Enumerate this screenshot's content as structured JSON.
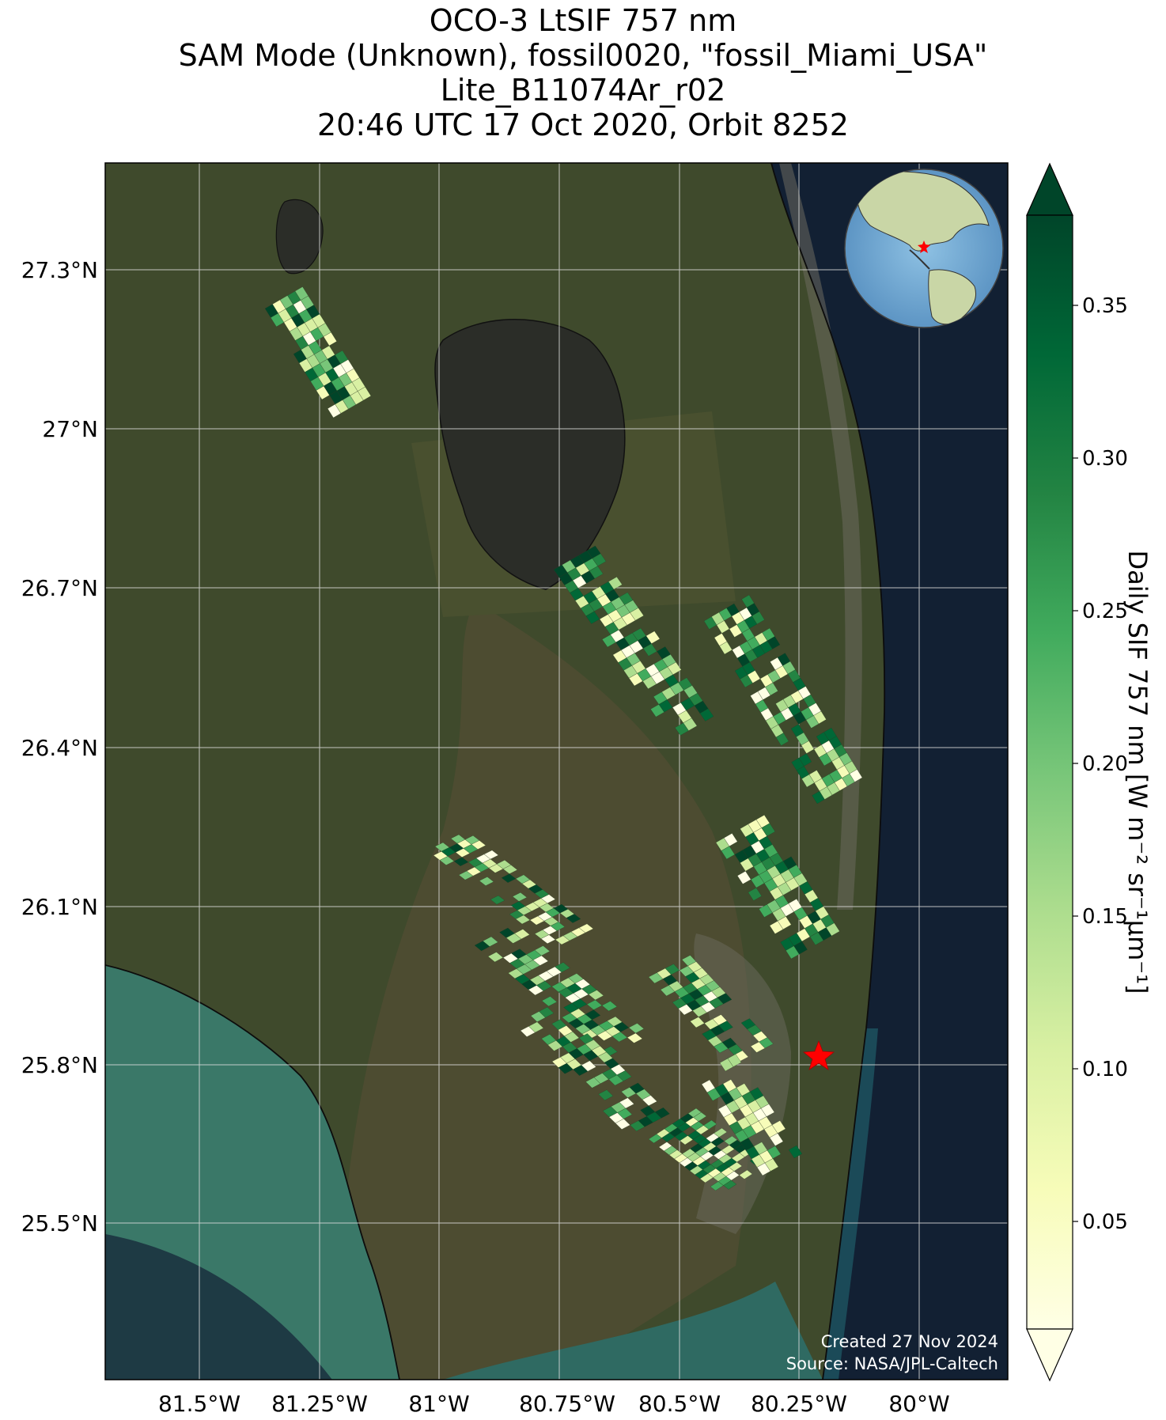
{
  "title": {
    "line1": "OCO-3 LtSIF 757 nm",
    "line2": "SAM Mode (Unknown), fossil0020, \"fossil_Miami_USA\"",
    "line3": "Lite_B11074Ar_r02",
    "line4": "20:46 UTC 17 Oct 2020, Orbit 8252"
  },
  "map": {
    "lat_labels": [
      "27.3°N",
      "27°N",
      "26.7°N",
      "26.4°N",
      "26.1°N",
      "25.8°N",
      "25.5°N"
    ],
    "lon_labels": [
      "81.5°W",
      "81.25°W",
      "81°W",
      "80.75°W",
      "80.5°W",
      "80.25°W",
      "80°W"
    ],
    "target_marker": "red-star",
    "credit_line1": "Created 27 Nov 2024",
    "credit_line2": "Source: NASA/JPL-Caltech",
    "colors": {
      "land": "#3f4a2c",
      "everglades": "#4a4a30",
      "ocean": "#122033",
      "gulf_shallow": "#3a7868",
      "lake": "#2b2d28",
      "grid": "#dcdcdc"
    }
  },
  "colorbar": {
    "label": "Daily SIF 757 nm [W m⁻² sr⁻¹µm⁻¹]",
    "ticks": [
      "0.05",
      "0.10",
      "0.15",
      "0.20",
      "0.25",
      "0.30",
      "0.35"
    ],
    "colormap": [
      "#ffffe5",
      "#f7fcb9",
      "#d9f0a3",
      "#addd8e",
      "#78c679",
      "#41ab5d",
      "#238443",
      "#006837",
      "#004529"
    ]
  },
  "inset": {
    "name": "globe-locator",
    "marker": "red-star"
  }
}
